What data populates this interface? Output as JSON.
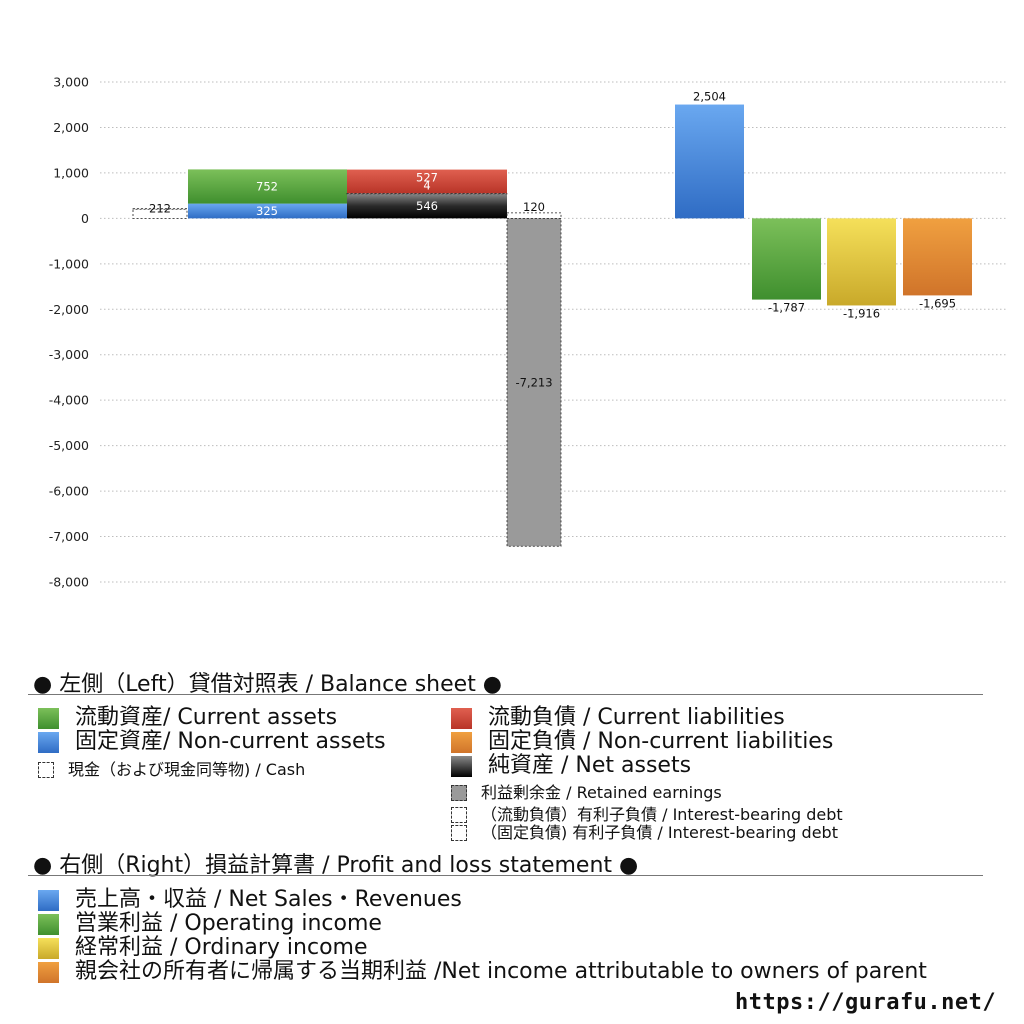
{
  "chart_data": {
    "type": "bar",
    "title": "",
    "xlabel": "",
    "ylabel": "",
    "ylim": [
      -8000,
      3000
    ],
    "yticks": [
      3000,
      2000,
      1000,
      0,
      -1000,
      -2000,
      -3000,
      -4000,
      -5000,
      -6000,
      -7000,
      -8000
    ],
    "ytick_labels": [
      "3,000",
      "2,000",
      "1,000",
      "0",
      "-1,000",
      "-2,000",
      "-3,000",
      "-4,000",
      "-5,000",
      "-6,000",
      "-7,000",
      "-8,000"
    ],
    "grid": true,
    "left_balance_sheet": [
      {
        "item": "cash",
        "value": 212,
        "label": "212",
        "color": "#ffffff",
        "style": "dashed"
      },
      {
        "item": "non_current_assets",
        "value": 325,
        "label": "325",
        "color": "#3f7fd6"
      },
      {
        "item": "current_assets",
        "value": 752,
        "label": "752",
        "color": "#5aa842"
      },
      {
        "item": "net_assets",
        "value": 546,
        "label": "546",
        "color": "#1a1a1a"
      },
      {
        "item": "interest_bearing_debt_current",
        "value": 4,
        "label": "4",
        "color": "#ffffff",
        "style": "dashed"
      },
      {
        "item": "current_liabilities",
        "value": 527,
        "label": "527",
        "color": "#d04a3a"
      },
      {
        "item": "interest_bearing_debt_noncurrent",
        "value": 120,
        "label": "120",
        "color": "#ffffff",
        "style": "dashed"
      },
      {
        "item": "retained_earnings",
        "value": -7213,
        "label": "-7,213",
        "color": "#9a9a9a",
        "style": "dashed"
      }
    ],
    "right_profit_and_loss": [
      {
        "item": "net_sales",
        "value": 2504,
        "label": "2,504",
        "color": "#4a8ae0"
      },
      {
        "item": "operating_income",
        "value": -1787,
        "label": "-1,787",
        "color": "#5aa842"
      },
      {
        "item": "ordinary_income",
        "value": -1916,
        "label": "-1,916",
        "color": "#dcc33a"
      },
      {
        "item": "net_income_parent",
        "value": -1695,
        "label": "-1,695",
        "color": "#e08a36"
      }
    ]
  },
  "legend": {
    "left_title": "● 左側（Left）貸借対照表 / Balance sheet ●",
    "left_items": [
      {
        "label": "流動資産/ Current assets",
        "color": "#5aa842"
      },
      {
        "label": "固定資産/ Non-current assets",
        "color": "#3f7fd6"
      },
      {
        "label": "現金（および現金同等物) / Cash",
        "color": "#ffffff"
      },
      {
        "label": "流動負債 /  Current liabilities",
        "color": "#d04a3a"
      },
      {
        "label": "固定負債 / Non-current liabilities",
        "color": "#e08a36"
      },
      {
        "label": "純資産 / Net assets",
        "color": "#1a1a1a"
      },
      {
        "label": "利益剰余金 / Retained earnings",
        "color": "#9a9a9a"
      },
      {
        "label": "（流動負債）有利子負債 / Interest-bearing debt",
        "color": "#ffffff"
      },
      {
        "label": "（固定負債) 有利子負債 / Interest-bearing debt",
        "color": "#ffffff"
      }
    ],
    "right_title": "● 右側（Right）損益計算書 / Profit and loss statement ●",
    "right_items": [
      {
        "label": "売上高・収益 / Net Sales・Revenues",
        "color": "#4a8ae0"
      },
      {
        "label": "営業利益 / Operating income",
        "color": "#5aa842"
      },
      {
        "label": "経常利益 / Ordinary income",
        "color": "#dcc33a"
      },
      {
        "label": "親会社の所有者に帰属する当期利益 /Net income attributable to owners of parent",
        "color": "#e08a36"
      }
    ]
  },
  "source_url": "https://gurafu.net/"
}
